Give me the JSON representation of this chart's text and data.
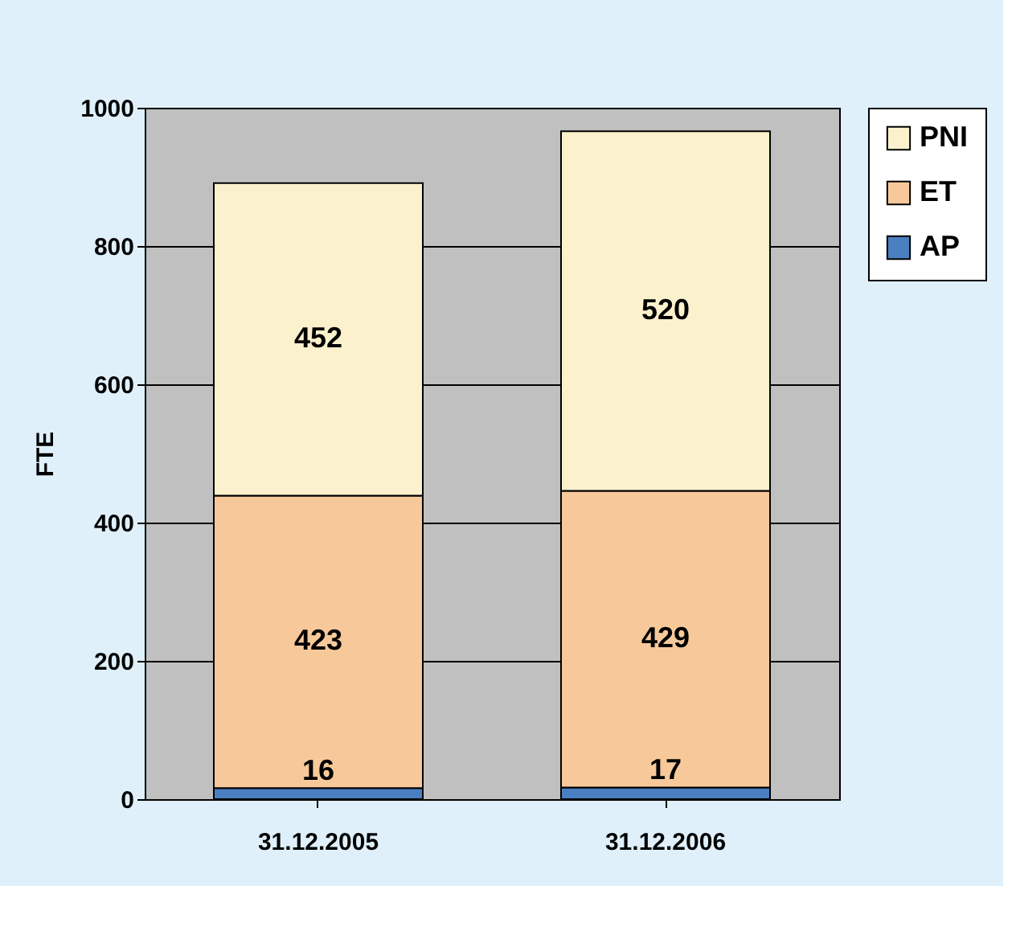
{
  "chart_data": {
    "type": "bar",
    "stacked": true,
    "ylabel": "FTE",
    "categories": [
      "31.12.2005",
      "31.12.2006"
    ],
    "series": [
      {
        "name": "AP",
        "color": "#4a7fc1",
        "values": [
          16,
          17
        ]
      },
      {
        "name": "ET",
        "color": "#f7c99a",
        "values": [
          423,
          429
        ]
      },
      {
        "name": "PNI",
        "color": "#fbf1cc",
        "values": [
          452,
          520
        ]
      }
    ],
    "ylim": [
      0,
      1000
    ],
    "yticks": [
      0,
      200,
      400,
      600,
      800,
      1000
    ],
    "grid": "y",
    "legend": "right",
    "data_labels": true
  }
}
